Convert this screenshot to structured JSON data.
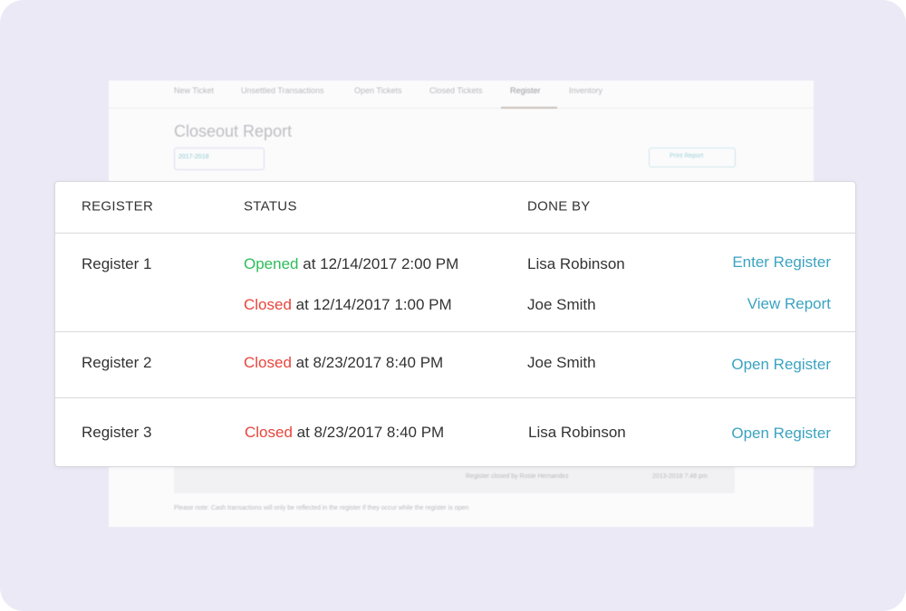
{
  "background": {
    "tabs": [
      "New Ticket",
      "Unsettled Transactions",
      "Open Tickets",
      "Closed Tickets",
      "Register",
      "Inventory"
    ],
    "title": "Closeout Report",
    "date": "2017-2018",
    "button": "Print Report",
    "summary": "Register closed by Rosie Hernandez",
    "summary_time": "2013-2018 7:48 pm",
    "note": "Please note: Cash transactions will only be reflected in the register if they occur while the register is open"
  },
  "table": {
    "headers": [
      "REGISTER",
      "STATUS",
      "DONE BY"
    ],
    "rows": [
      {
        "register": "Register 1",
        "entries": [
          {
            "status": "Opened",
            "time": "at 12/14/2017 2:00 PM",
            "by": "Lisa Robinson",
            "action": "Enter Register"
          },
          {
            "status": "Closed",
            "time": "at 12/14/2017 1:00 PM",
            "by": "Joe Smith",
            "action": "View Report"
          }
        ]
      },
      {
        "register": "Register 2",
        "entries": [
          {
            "status": "Closed",
            "time": "at 8/23/2017 8:40 PM",
            "by": "Joe Smith",
            "action": "Open Register"
          }
        ]
      },
      {
        "register": "Register 3",
        "entries": [
          {
            "status": "Closed",
            "time": "at 8/23/2017 8:40 PM",
            "by": "Lisa Robinson",
            "action": "Open Register"
          }
        ]
      }
    ]
  }
}
